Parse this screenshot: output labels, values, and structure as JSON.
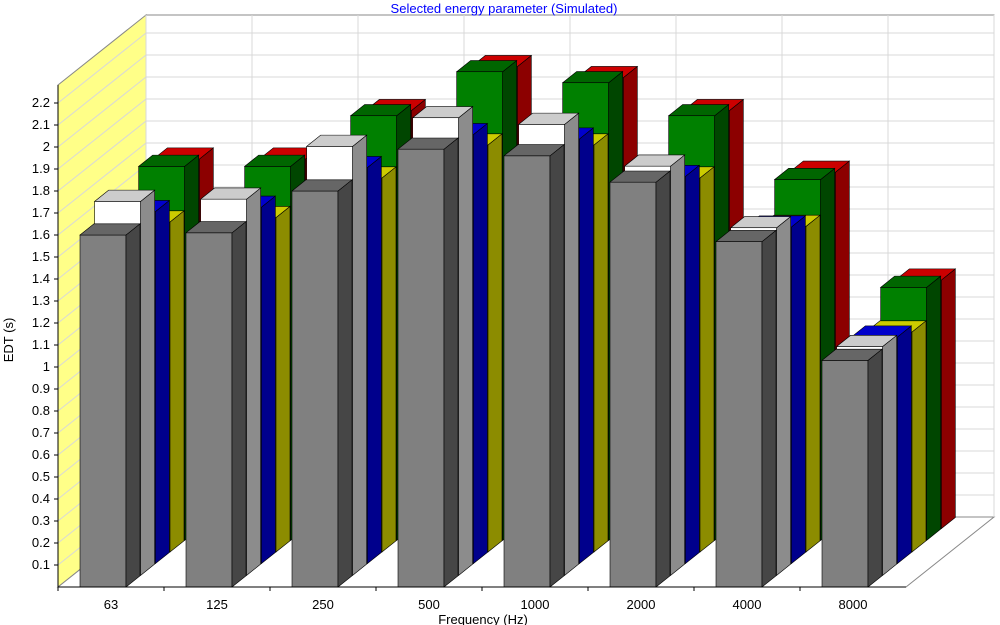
{
  "chart_data": {
    "type": "bar",
    "title": "Selected energy parameter (Simulated)",
    "xlabel": "Frequency (Hz)",
    "ylabel": "EDT (s)",
    "ylim": [
      0,
      2.2
    ],
    "yticks": [
      "0.1",
      "0.2",
      "0.3",
      "0.4",
      "0.5",
      "0.6",
      "0.7",
      "0.8",
      "0.9",
      "1",
      "1.1",
      "1.2",
      "1.3",
      "1.4",
      "1.5",
      "1.6",
      "1.7",
      "1.8",
      "1.9",
      "2",
      "2.1",
      "2.2"
    ],
    "categories": [
      "63",
      "125",
      "250",
      "500",
      "1000",
      "2000",
      "4000",
      "8000"
    ],
    "grid": true,
    "three_d": true,
    "series": [
      {
        "color": "#ff0000",
        "values": [
          1.68,
          1.68,
          1.9,
          2.1,
          2.05,
          1.9,
          1.62,
          1.13
        ]
      },
      {
        "color": "#008000",
        "values": [
          1.7,
          1.7,
          1.93,
          2.13,
          2.08,
          1.93,
          1.64,
          1.15
        ]
      },
      {
        "color": "#ffff00",
        "values": [
          1.5,
          1.52,
          1.7,
          1.85,
          1.85,
          1.7,
          1.48,
          1.0
        ]
      },
      {
        "color": "#0000ff",
        "values": [
          1.6,
          1.62,
          1.8,
          1.95,
          1.93,
          1.76,
          1.53,
          1.03
        ]
      },
      {
        "color": "#ffffff",
        "values": [
          1.7,
          1.71,
          1.95,
          2.08,
          2.05,
          1.86,
          1.58,
          1.04
        ]
      },
      {
        "color": "#808080",
        "values": [
          1.6,
          1.61,
          1.8,
          1.99,
          1.96,
          1.84,
          1.57,
          1.03
        ]
      }
    ]
  }
}
